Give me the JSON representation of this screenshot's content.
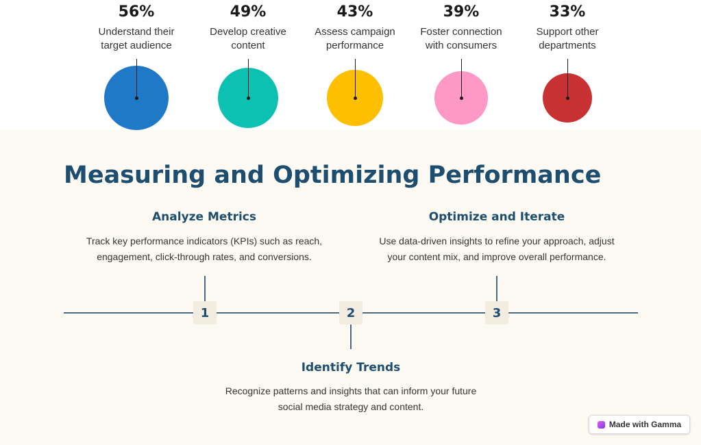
{
  "stats": [
    {
      "value": 56,
      "percent": "56%",
      "label_line1": "Understand their",
      "label_line2": "target audience",
      "color": "#2079c7"
    },
    {
      "value": 49,
      "percent": "49%",
      "label_line1": "Develop creative",
      "label_line2": "content",
      "color": "#0cc1b2"
    },
    {
      "value": 43,
      "percent": "43%",
      "label_line1": "Assess campaign",
      "label_line2": "performance",
      "color": "#fdbf00"
    },
    {
      "value": 39,
      "percent": "39%",
      "label_line1": "Foster connection",
      "label_line2": "with consumers",
      "color": "#fe98c6"
    },
    {
      "value": 33,
      "percent": "33%",
      "label_line1": "Support other",
      "label_line2": "departments",
      "color": "#c73131"
    }
  ],
  "section": {
    "title": "Measuring and Optimizing Performance"
  },
  "steps": [
    {
      "number": "1",
      "title": "Analyze Metrics",
      "desc_line1": "Track key performance indicators (KPIs) such as reach,",
      "desc_line2": "engagement, click-through rates, and conversions."
    },
    {
      "number": "2",
      "title": "Identify Trends",
      "desc_line1": "Recognize patterns and insights that can inform your future",
      "desc_line2": "social media strategy and content."
    },
    {
      "number": "3",
      "title": "Optimize and Iterate",
      "desc_line1": "Use data-driven insights to refine your approach, adjust",
      "desc_line2": "your content mix, and improve overall performance."
    }
  ],
  "footer": {
    "badge_label": "Made with Gamma",
    "icon": "gamma-logo-icon"
  }
}
